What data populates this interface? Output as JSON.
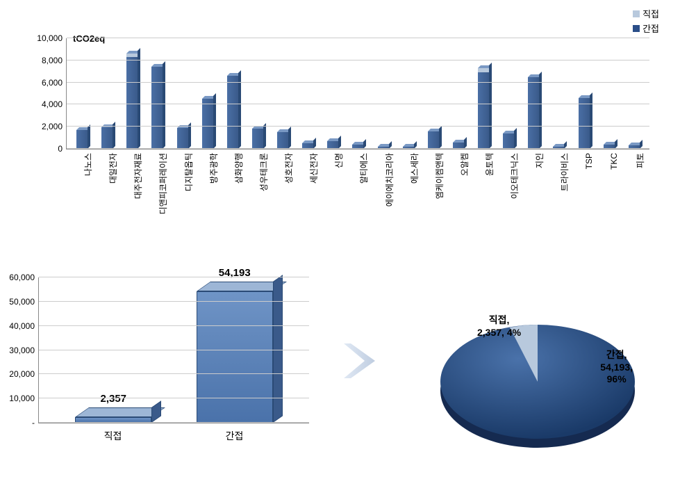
{
  "legend": {
    "direct_label": "직접",
    "indirect_label": "간접",
    "direct_color": "#b8c9dd",
    "indirect_color": "#2a4e88"
  },
  "top_chart": {
    "type": "bar",
    "ylabel": "tCO2eq",
    "ylim": [
      0,
      10000
    ],
    "ytick_step": 2000,
    "yticks": [
      "0",
      "2,000",
      "4,000",
      "6,000",
      "8,000",
      "10,000"
    ],
    "indirect_color": "#3a5a8a",
    "direct_overlay_color": "#b8c9dd",
    "grid_color": "#cccccc",
    "categories": [
      "나노스",
      "대일전자",
      "대주전자재료",
      "디앤피코퍼레이션",
      "디지탈옵틱",
      "방주광학",
      "삼화양행",
      "성우테크론",
      "성호전자",
      "세신전자",
      "신명",
      "알티에스",
      "에이에치코리아",
      "에스세라",
      "엠케이켐앤텍",
      "오알켐",
      "윤토텍",
      "이오테크닉스",
      "지인",
      "트라이비스",
      "TSP",
      "TKC",
      "피토"
    ],
    "indirect_values": [
      1700,
      1950,
      8300,
      7400,
      1900,
      4500,
      6600,
      1800,
      1500,
      500,
      700,
      400,
      200,
      200,
      1600,
      550,
      6900,
      1400,
      6500,
      200,
      4600,
      350,
      300
    ],
    "direct_values": [
      0,
      0,
      300,
      0,
      0,
      0,
      0,
      0,
      0,
      0,
      0,
      0,
      0,
      0,
      0,
      0,
      400,
      0,
      0,
      0,
      0,
      0,
      0
    ]
  },
  "bottom_bar": {
    "type": "bar",
    "ylim": [
      0,
      60000
    ],
    "ytick_step": 10000,
    "yticks": [
      "-",
      "10,000",
      "20,000",
      "30,000",
      "40,000",
      "50,000",
      "60,000"
    ],
    "categories": [
      "직접",
      "간접"
    ],
    "values": [
      2357,
      54193
    ],
    "value_labels": [
      "2,357",
      "54,193"
    ],
    "bar_color": "#5f84bb"
  },
  "pie": {
    "type": "pie",
    "slices": [
      {
        "label": "직접",
        "value": 2357,
        "percent": "4%",
        "color": "#b8c9dd"
      },
      {
        "label": "간접",
        "value": 54193,
        "percent": "96%",
        "color": "#2a4e88"
      }
    ],
    "direct_text_l1": "직접,",
    "direct_text_l2": "2,357, 4%",
    "indirect_text_l1": "간접,",
    "indirect_text_l2": "54,193,",
    "indirect_text_l3": "96%"
  }
}
